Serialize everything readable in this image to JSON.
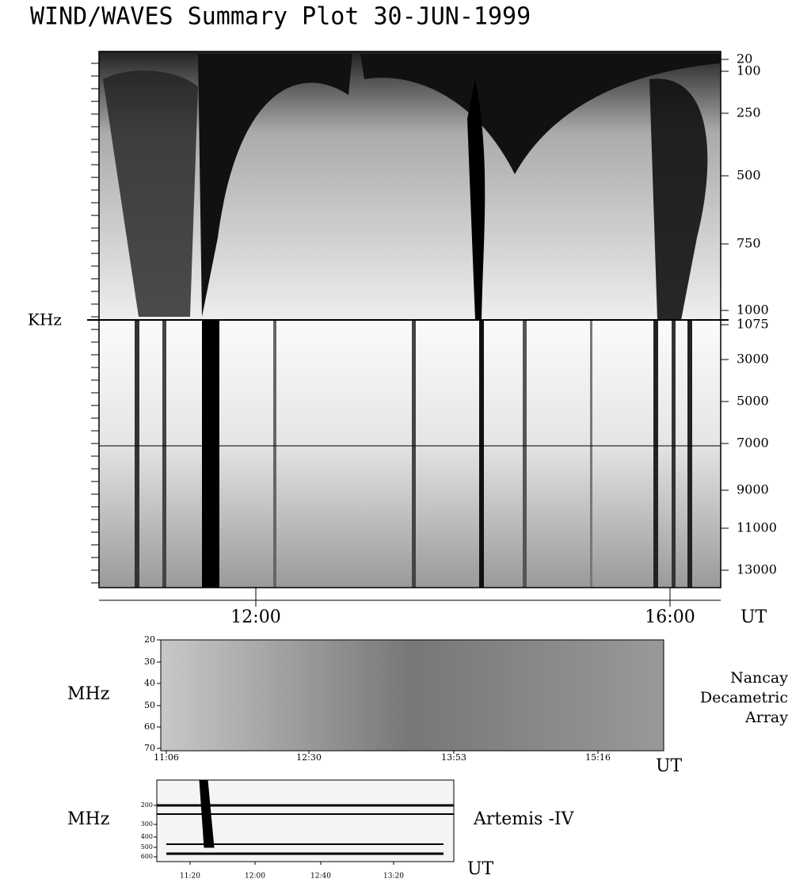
{
  "title": "WIND/WAVES Summary Plot 30-JUN-1999",
  "wind_panel": {
    "y_unit": "KHz",
    "rad1_ticks": [
      "20",
      "100",
      "250",
      "500",
      "750",
      "1000"
    ],
    "rad2_ticks": [
      "1075",
      "3000",
      "5000",
      "7000",
      "9000",
      "11000",
      "13000"
    ],
    "x_ticks": [
      "12:00",
      "16:00"
    ],
    "x_unit": "UT"
  },
  "nancay_panel": {
    "y_unit": "MHz",
    "y_ticks": [
      "20",
      "30",
      "40",
      "50",
      "60",
      "70"
    ],
    "x_ticks": [
      "11:06",
      "12:30",
      "13:53",
      "15:16"
    ],
    "x_unit": "UT",
    "label_lines": [
      "Nancay",
      "Decametric",
      "Array"
    ]
  },
  "artemis_panel": {
    "y_unit": "MHz",
    "y_ticks": [
      "200",
      "300",
      "400",
      "500",
      "600"
    ],
    "x_ticks": [
      "11:20",
      "12:00",
      "12:40",
      "13:20"
    ],
    "x_unit": "UT",
    "label": "Artemis -IV"
  }
}
